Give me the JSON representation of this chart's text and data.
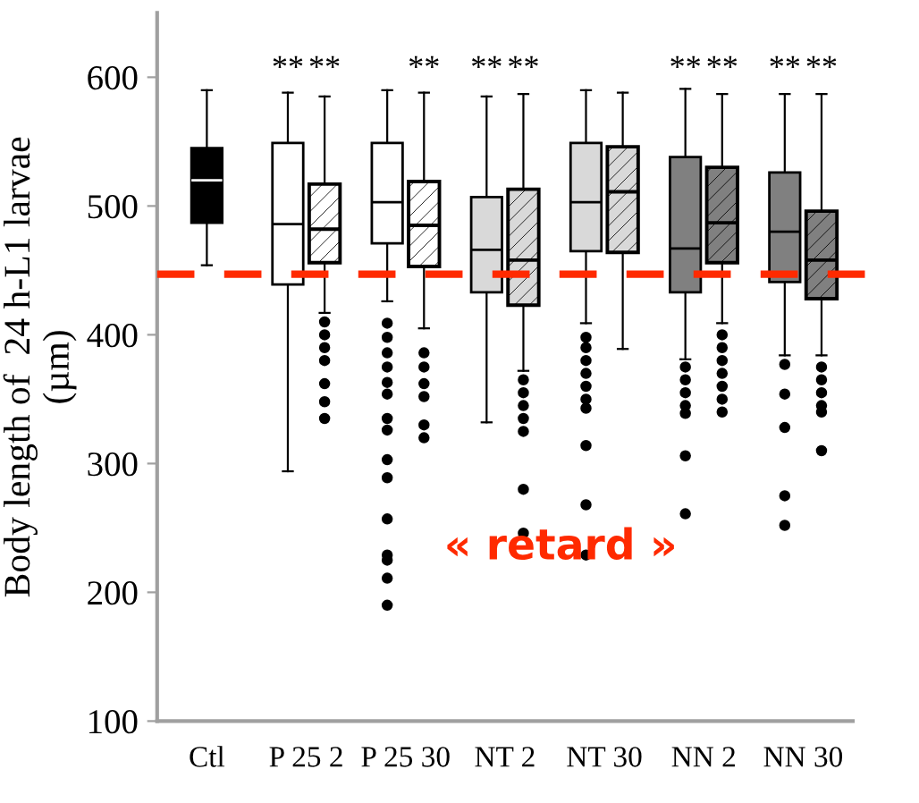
{
  "chart_data": {
    "type": "box",
    "ylabel": "Body length of  24 h-L1 larvae\n(µm)",
    "categories": [
      "Ctl",
      "P 25 2",
      "P 25 30",
      "NT 2",
      "NT 30",
      "NN 2",
      "NN 30"
    ],
    "ylim": [
      100,
      650
    ],
    "yticks": [
      100,
      200,
      300,
      400,
      500,
      600
    ],
    "grid": false,
    "series": [
      {
        "colors": [
          "#000000",
          "#ffffff",
          "#ffffff",
          "#d9d9d9",
          "#d9d9d9",
          "#808080",
          "#808080"
        ],
        "boxes": [
          {
            "low": 454,
            "q1": 487,
            "median": 520,
            "q3": 545,
            "high": 590
          },
          {
            "low": 294,
            "q1": 439,
            "median": 486,
            "q3": 549,
            "high": 588
          },
          {
            "low": 426,
            "q1": 471,
            "median": 503,
            "q3": 549,
            "high": 590,
            "outliers": [
              409,
              398,
              386,
              375,
              363,
              354,
              335,
              326,
              303,
              289,
              257,
              229,
              225,
              211,
              190
            ]
          },
          {
            "low": 332,
            "q1": 433,
            "median": 466,
            "q3": 507,
            "high": 585
          },
          {
            "low": 409,
            "q1": 465,
            "median": 503,
            "q3": 549,
            "high": 590,
            "outliers": [
              398,
              390,
              380,
              370,
              360,
              350,
              343,
              314,
              268,
              229
            ]
          },
          {
            "low": 381,
            "q1": 433,
            "median": 467,
            "q3": 538,
            "high": 591,
            "outliers": [
              375,
              365,
              355,
              345,
              339,
              306,
              261
            ]
          },
          {
            "low": 384,
            "q1": 441,
            "median": 480,
            "q3": 526,
            "high": 587,
            "outliers": [
              377,
              354,
              328,
              275,
              252
            ]
          }
        ]
      },
      {
        "colors": [
          null,
          "#ffffff",
          "#ffffff",
          "#d9d9d9",
          "#d9d9d9",
          "#808080",
          "#808080"
        ],
        "boxes": [
          null,
          {
            "low": 417,
            "q1": 456,
            "median": 482,
            "q3": 517,
            "high": 585,
            "outliers": [
              410,
              400,
              390,
              380,
              362,
              348,
              335
            ]
          },
          {
            "low": 405,
            "q1": 453,
            "median": 485,
            "q3": 519,
            "high": 588,
            "outliers": [
              386,
              375,
              362,
              352,
              330,
              320
            ]
          },
          {
            "low": 372,
            "q1": 423,
            "median": 458,
            "q3": 513,
            "high": 587,
            "outliers": [
              365,
              355,
              345,
              335,
              325,
              280,
              246
            ]
          },
          {
            "low": 389,
            "q1": 464,
            "median": 511,
            "q3": 546,
            "high": 588
          },
          {
            "low": 409,
            "q1": 456,
            "median": 487,
            "q3": 530,
            "high": 587,
            "outliers": [
              400,
              390,
              380,
              370,
              360,
              350,
              340
            ]
          },
          {
            "low": 384,
            "q1": 428,
            "median": 458,
            "q3": 496,
            "high": 587,
            "outliers": [
              375,
              365,
              355,
              345,
              340,
              310
            ]
          }
        ]
      }
    ],
    "ref_lines": [
      {
        "axis": "y",
        "value": 447,
        "label": "« retard »",
        "color": "#ff2a00",
        "line_style": "dashed"
      }
    ],
    "annotations": [
      "**",
      "**",
      "**",
      "**",
      "**",
      "**",
      "**",
      "**",
      "**"
    ]
  }
}
